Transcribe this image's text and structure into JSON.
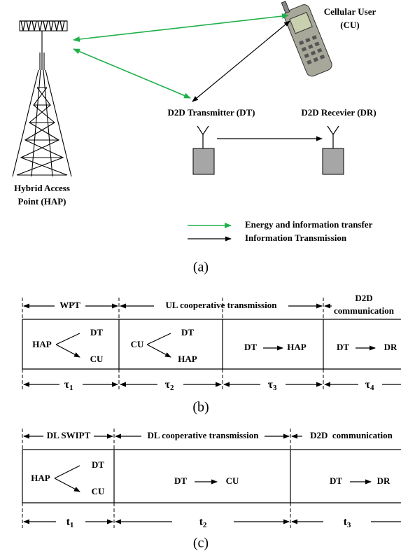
{
  "panel_a": {
    "cu_label": [
      "Cellular User",
      "(CU)"
    ],
    "dt_label": "D2D Transmitter (DT)",
    "dr_label": "D2D Recevier (DR)",
    "hap_label": [
      "Hybrid Access",
      "Point (HAP)"
    ],
    "legend": [
      "Energy and information transfer",
      "Information Transmission"
    ],
    "caption": "(a)"
  },
  "panel_b": {
    "headers": [
      "WPT",
      "UL cooperative transmission",
      "D2D",
      "communication"
    ],
    "cells": [
      [
        "HAP",
        "DT",
        "CU"
      ],
      [
        "CU",
        "DT",
        "HAP"
      ],
      [
        "DT",
        "HAP"
      ],
      [
        "DT",
        "DR"
      ]
    ],
    "durations": [
      {
        "symbol": "τ",
        "sub": "1"
      },
      {
        "symbol": "τ",
        "sub": "2"
      },
      {
        "symbol": "τ",
        "sub": "3"
      },
      {
        "symbol": "τ",
        "sub": "4"
      }
    ],
    "caption": "(b)"
  },
  "panel_c": {
    "headers": [
      "DL SWIPT",
      "DL cooperative transmission",
      "D2D  communication"
    ],
    "cells": [
      [
        "HAP",
        "DT",
        "CU"
      ],
      [
        "DT",
        "CU"
      ],
      [
        "DT",
        "DR"
      ]
    ],
    "durations": [
      {
        "symbol": "t",
        "sub": "1"
      },
      {
        "symbol": "t",
        "sub": "2"
      },
      {
        "symbol": "t",
        "sub": "3"
      }
    ],
    "caption": "(c)"
  }
}
